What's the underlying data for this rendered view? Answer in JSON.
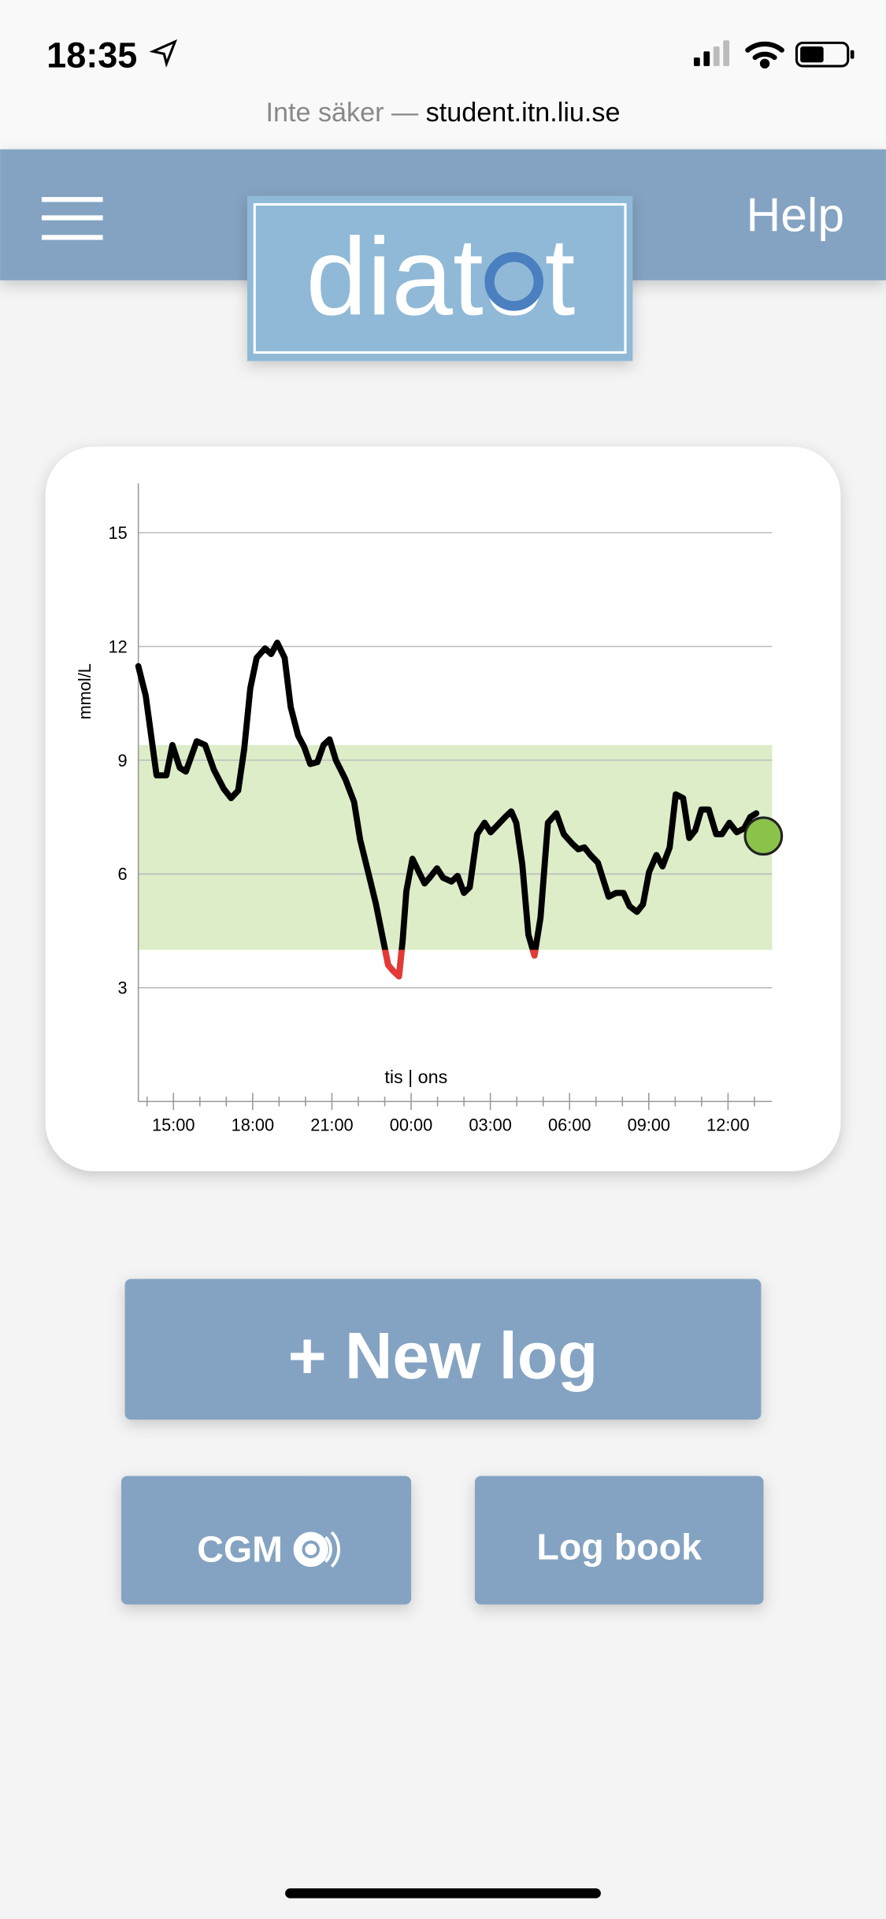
{
  "status_bar": {
    "time": "18:35"
  },
  "browser": {
    "security": "Inte säker —",
    "url": "student.itn.liu.se"
  },
  "header": {
    "logo": "diatot",
    "help": "Help"
  },
  "chart_data": {
    "type": "line",
    "y_label": "mmol/L",
    "annotation": "tis | ons",
    "x": [
      13.67,
      13.95,
      14.36,
      14.73,
      14.96,
      15.24,
      15.47,
      15.88,
      16.2,
      16.53,
      16.9,
      17.18,
      17.45,
      17.68,
      17.91,
      18.15,
      18.47,
      18.7,
      18.93,
      19.21,
      19.44,
      19.72,
      19.95,
      20.18,
      20.45,
      20.68,
      20.91,
      21.15,
      21.51,
      21.84,
      22.07,
      22.39,
      22.67,
      22.9,
      23.13,
      23.31,
      23.54,
      23.68,
      23.82,
      24.05,
      24.33,
      24.51,
      24.7,
      24.98,
      25.21,
      25.53,
      25.76,
      26.0,
      26.22,
      26.5,
      26.78,
      27.01,
      27.29,
      27.56,
      27.79,
      27.98,
      28.21,
      28.44,
      28.67,
      28.9,
      29.18,
      29.5,
      29.78,
      30.1,
      30.33,
      30.56,
      30.79,
      31.07,
      31.48,
      31.76,
      32.04,
      32.27,
      32.55,
      32.78,
      33.01,
      33.29,
      33.52,
      33.79,
      34.02,
      34.3,
      34.53,
      34.76,
      34.99,
      35.27,
      35.55,
      35.77,
      36.05,
      36.33,
      36.61,
      36.84,
      37.07
    ],
    "series": [
      {
        "color": "#000000",
        "values": [
          11.48,
          10.7,
          8.6,
          8.6,
          9.4,
          8.8,
          8.7,
          9.5,
          9.4,
          8.75,
          8.25,
          8.0,
          8.2,
          9.3,
          10.9,
          11.7,
          11.95,
          11.8,
          12.1,
          11.7,
          10.4,
          9.65,
          9.35,
          8.9,
          8.95,
          9.4,
          9.55,
          9.0,
          8.5,
          7.9,
          6.9,
          6.0,
          5.2,
          4.4,
          3.6,
          3.45,
          3.3,
          4.25,
          5.55,
          6.4,
          6.0,
          5.75,
          5.9,
          6.15,
          5.9,
          5.8,
          5.95,
          5.5,
          5.65,
          7.05,
          7.35,
          7.1,
          7.3,
          7.5,
          7.65,
          7.35,
          6.25,
          4.4,
          3.85,
          4.85,
          7.35,
          7.6,
          7.05,
          6.8,
          6.65,
          6.7,
          6.5,
          6.3,
          5.4,
          5.5,
          5.5,
          5.15,
          5.0,
          5.2,
          6.05,
          6.5,
          6.2,
          6.7,
          8.1,
          8.0,
          6.95,
          7.15,
          7.7,
          7.7,
          7.05,
          7.05,
          7.35,
          7.1,
          7.2,
          7.5,
          7.6
        ]
      }
    ],
    "low_color": "#e53935",
    "target_range": [
      4,
      9.4
    ],
    "target_color": "#dcedc8",
    "current": {
      "x": 37.34,
      "value": 7.0,
      "color": "#8bc34a"
    },
    "xlim": [
      13.67,
      37.67
    ],
    "ylim": [
      0,
      16.3
    ],
    "xticks": [
      {
        "value": 15,
        "label": "15:00"
      },
      {
        "value": 18,
        "label": "18:00"
      },
      {
        "value": 21,
        "label": "21:00"
      },
      {
        "value": 24,
        "label": "00:00"
      },
      {
        "value": 27,
        "label": "03:00"
      },
      {
        "value": 30,
        "label": "06:00"
      },
      {
        "value": 33,
        "label": "09:00"
      },
      {
        "value": 36,
        "label": "12:00"
      }
    ],
    "xminor_ticks": [
      14,
      16,
      17,
      19,
      20,
      22,
      23,
      25,
      26,
      28,
      29,
      31,
      32,
      34,
      35,
      37
    ],
    "yticks": [
      3,
      6,
      9,
      12,
      15
    ],
    "grid": true
  },
  "buttons": {
    "new_log": "+ New log",
    "cgm": "CGM",
    "log_book": "Log book"
  }
}
